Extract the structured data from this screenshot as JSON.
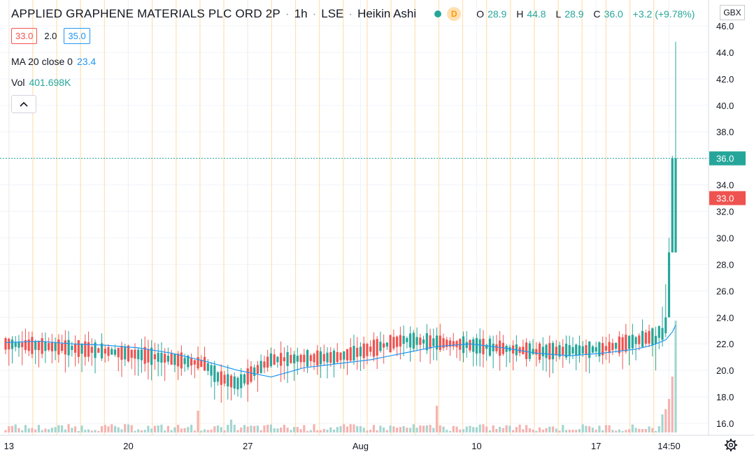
{
  "header": {
    "symbol": "APPLIED GRAPHENE MATERIALS PLC ORD 2P",
    "interval": "1h",
    "exchange": "LSE",
    "chart_style": "Heikin Ashi",
    "status_letter": "D",
    "o_label": "O",
    "o": "28.9",
    "h_label": "H",
    "h": "44.8",
    "l_label": "L",
    "l": "28.9",
    "c_label": "C",
    "c": "36.0",
    "change": "+3.2 (+9.78%)"
  },
  "quote": {
    "bid": "33.0",
    "spread": "2.0",
    "ask": "35.0"
  },
  "indicators": {
    "ma_label": "MA 20 close 0",
    "ma_value": "23.4",
    "vol_label": "Vol",
    "vol_value": "401.698K"
  },
  "collapse_icon": "^",
  "currency_label": "GBX",
  "settings_icon": "gear-icon",
  "colors": {
    "up": "#26a69a",
    "down": "#ef5350",
    "ma": "#2196f3",
    "session": "#ffe0b2",
    "up_volume": "#a5d6d0",
    "down_volume": "#f4b3b1"
  },
  "chart_data": {
    "type": "candlestick",
    "title": "APPLIED GRAPHENE MATERIALS PLC ORD 2P",
    "y_ticks": [
      "46.0",
      "44.0",
      "42.0",
      "40.0",
      "38.0",
      "36.0",
      "34.0",
      "32.0",
      "30.0",
      "28.0",
      "26.0",
      "24.0",
      "22.0",
      "20.0",
      "18.0",
      "16.0"
    ],
    "ylim": [
      15.4,
      46.3
    ],
    "x_ticks": [
      "13",
      "20",
      "27",
      "Aug",
      "10",
      "17",
      "14:50"
    ],
    "x_tick_index": [
      1,
      37,
      73,
      107,
      142,
      178,
      200
    ],
    "bar_count": 203,
    "last_price_label": "36.0",
    "bid_price_label": "33.0",
    "bid_price": 33.0,
    "last_price": 36.0,
    "ma_series": {
      "name": "MA 20 close 0",
      "index": [
        0,
        10,
        20,
        30,
        40,
        50,
        60,
        70,
        80,
        90,
        100,
        110,
        120,
        130,
        140,
        150,
        160,
        170,
        180,
        190,
        195,
        197,
        199,
        201,
        202
      ],
      "values": [
        22.1,
        22.2,
        22.0,
        21.9,
        21.7,
        21.3,
        20.7,
        20.0,
        19.5,
        20.2,
        20.5,
        20.8,
        21.3,
        21.8,
        22.0,
        21.7,
        21.3,
        21.1,
        21.3,
        21.6,
        21.9,
        22.1,
        22.3,
        22.9,
        23.4
      ]
    },
    "candles": {
      "index": [
        0,
        20,
        40,
        60,
        64,
        70,
        80,
        100,
        110,
        120,
        140,
        160,
        180,
        194,
        196,
        198,
        199,
        200,
        201,
        202
      ],
      "open": [
        22.5,
        22.3,
        21.8,
        20.8,
        19.8,
        19.6,
        20.4,
        20.4,
        21.4,
        21.8,
        21.8,
        21.2,
        21.4,
        21.9,
        22.0,
        22.3,
        22.8,
        24.0,
        28.9,
        28.9
      ],
      "close": [
        22.0,
        21.7,
        21.2,
        20.5,
        19.5,
        19.0,
        20.8,
        21.0,
        21.6,
        22.3,
        21.9,
        21.4,
        21.6,
        22.5,
        22.6,
        23.2,
        24.0,
        28.9,
        36.0,
        36.0
      ],
      "high": [
        23.0,
        22.9,
        22.6,
        21.5,
        20.8,
        20.1,
        21.3,
        22.9,
        23.0,
        23.0,
        22.8,
        22.8,
        22.8,
        23.1,
        23.3,
        24.8,
        26.5,
        30.0,
        36.2,
        44.8
      ],
      "low": [
        20.1,
        20.2,
        20.2,
        19.5,
        18.3,
        18.4,
        19.8,
        19.9,
        20.3,
        20.1,
        20.4,
        20.0,
        20.1,
        20.2,
        20.0,
        21.8,
        22.5,
        24.9,
        28.9,
        28.9
      ]
    },
    "volume_peak_index": [
      58,
      68,
      130,
      198,
      199,
      200,
      201,
      202
    ]
  }
}
